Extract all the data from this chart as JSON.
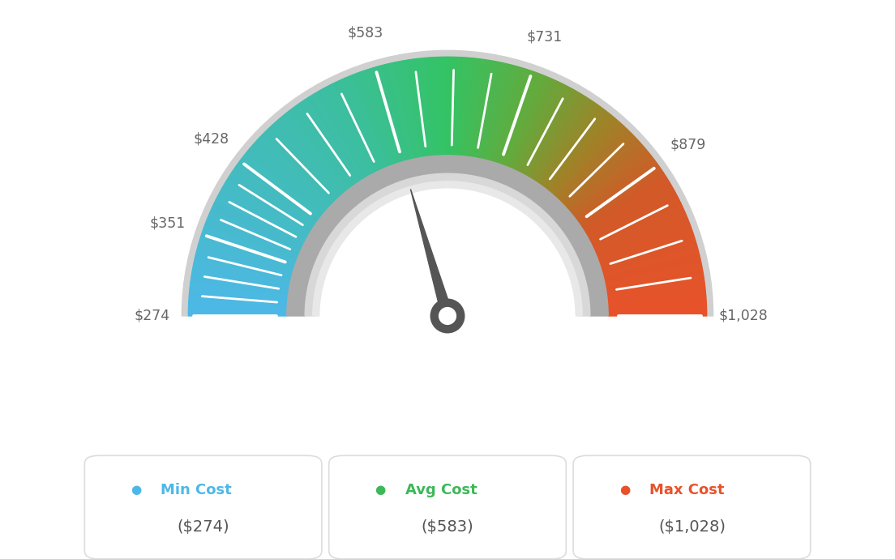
{
  "min_val": 274,
  "avg_val": 583,
  "max_val": 1028,
  "tick_labels": [
    "$274",
    "$351",
    "$428",
    "$583",
    "$731",
    "$879",
    "$1,028"
  ],
  "tick_values": [
    274,
    351,
    428,
    583,
    731,
    879,
    1028
  ],
  "minor_tick_count": 3,
  "min_cost_label": "Min Cost",
  "avg_cost_label": "Avg Cost",
  "max_cost_label": "Max Cost",
  "min_cost_value": "($274)",
  "avg_cost_value": "($583)",
  "max_cost_value": "($1,028)",
  "min_color": "#4db8e8",
  "avg_color": "#3db858",
  "max_color": "#e8522a",
  "bg_color": "#ffffff",
  "needle_color": "#555555",
  "color_stops": [
    [
      0.0,
      [
        77,
        184,
        232
      ]
    ],
    [
      0.35,
      [
        60,
        190,
        160
      ]
    ],
    [
      0.5,
      [
        52,
        195,
        100
      ]
    ],
    [
      0.62,
      [
        100,
        170,
        60
      ]
    ],
    [
      0.72,
      [
        160,
        130,
        40
      ]
    ],
    [
      0.82,
      [
        210,
        90,
        40
      ]
    ],
    [
      1.0,
      [
        232,
        82,
        42
      ]
    ]
  ]
}
